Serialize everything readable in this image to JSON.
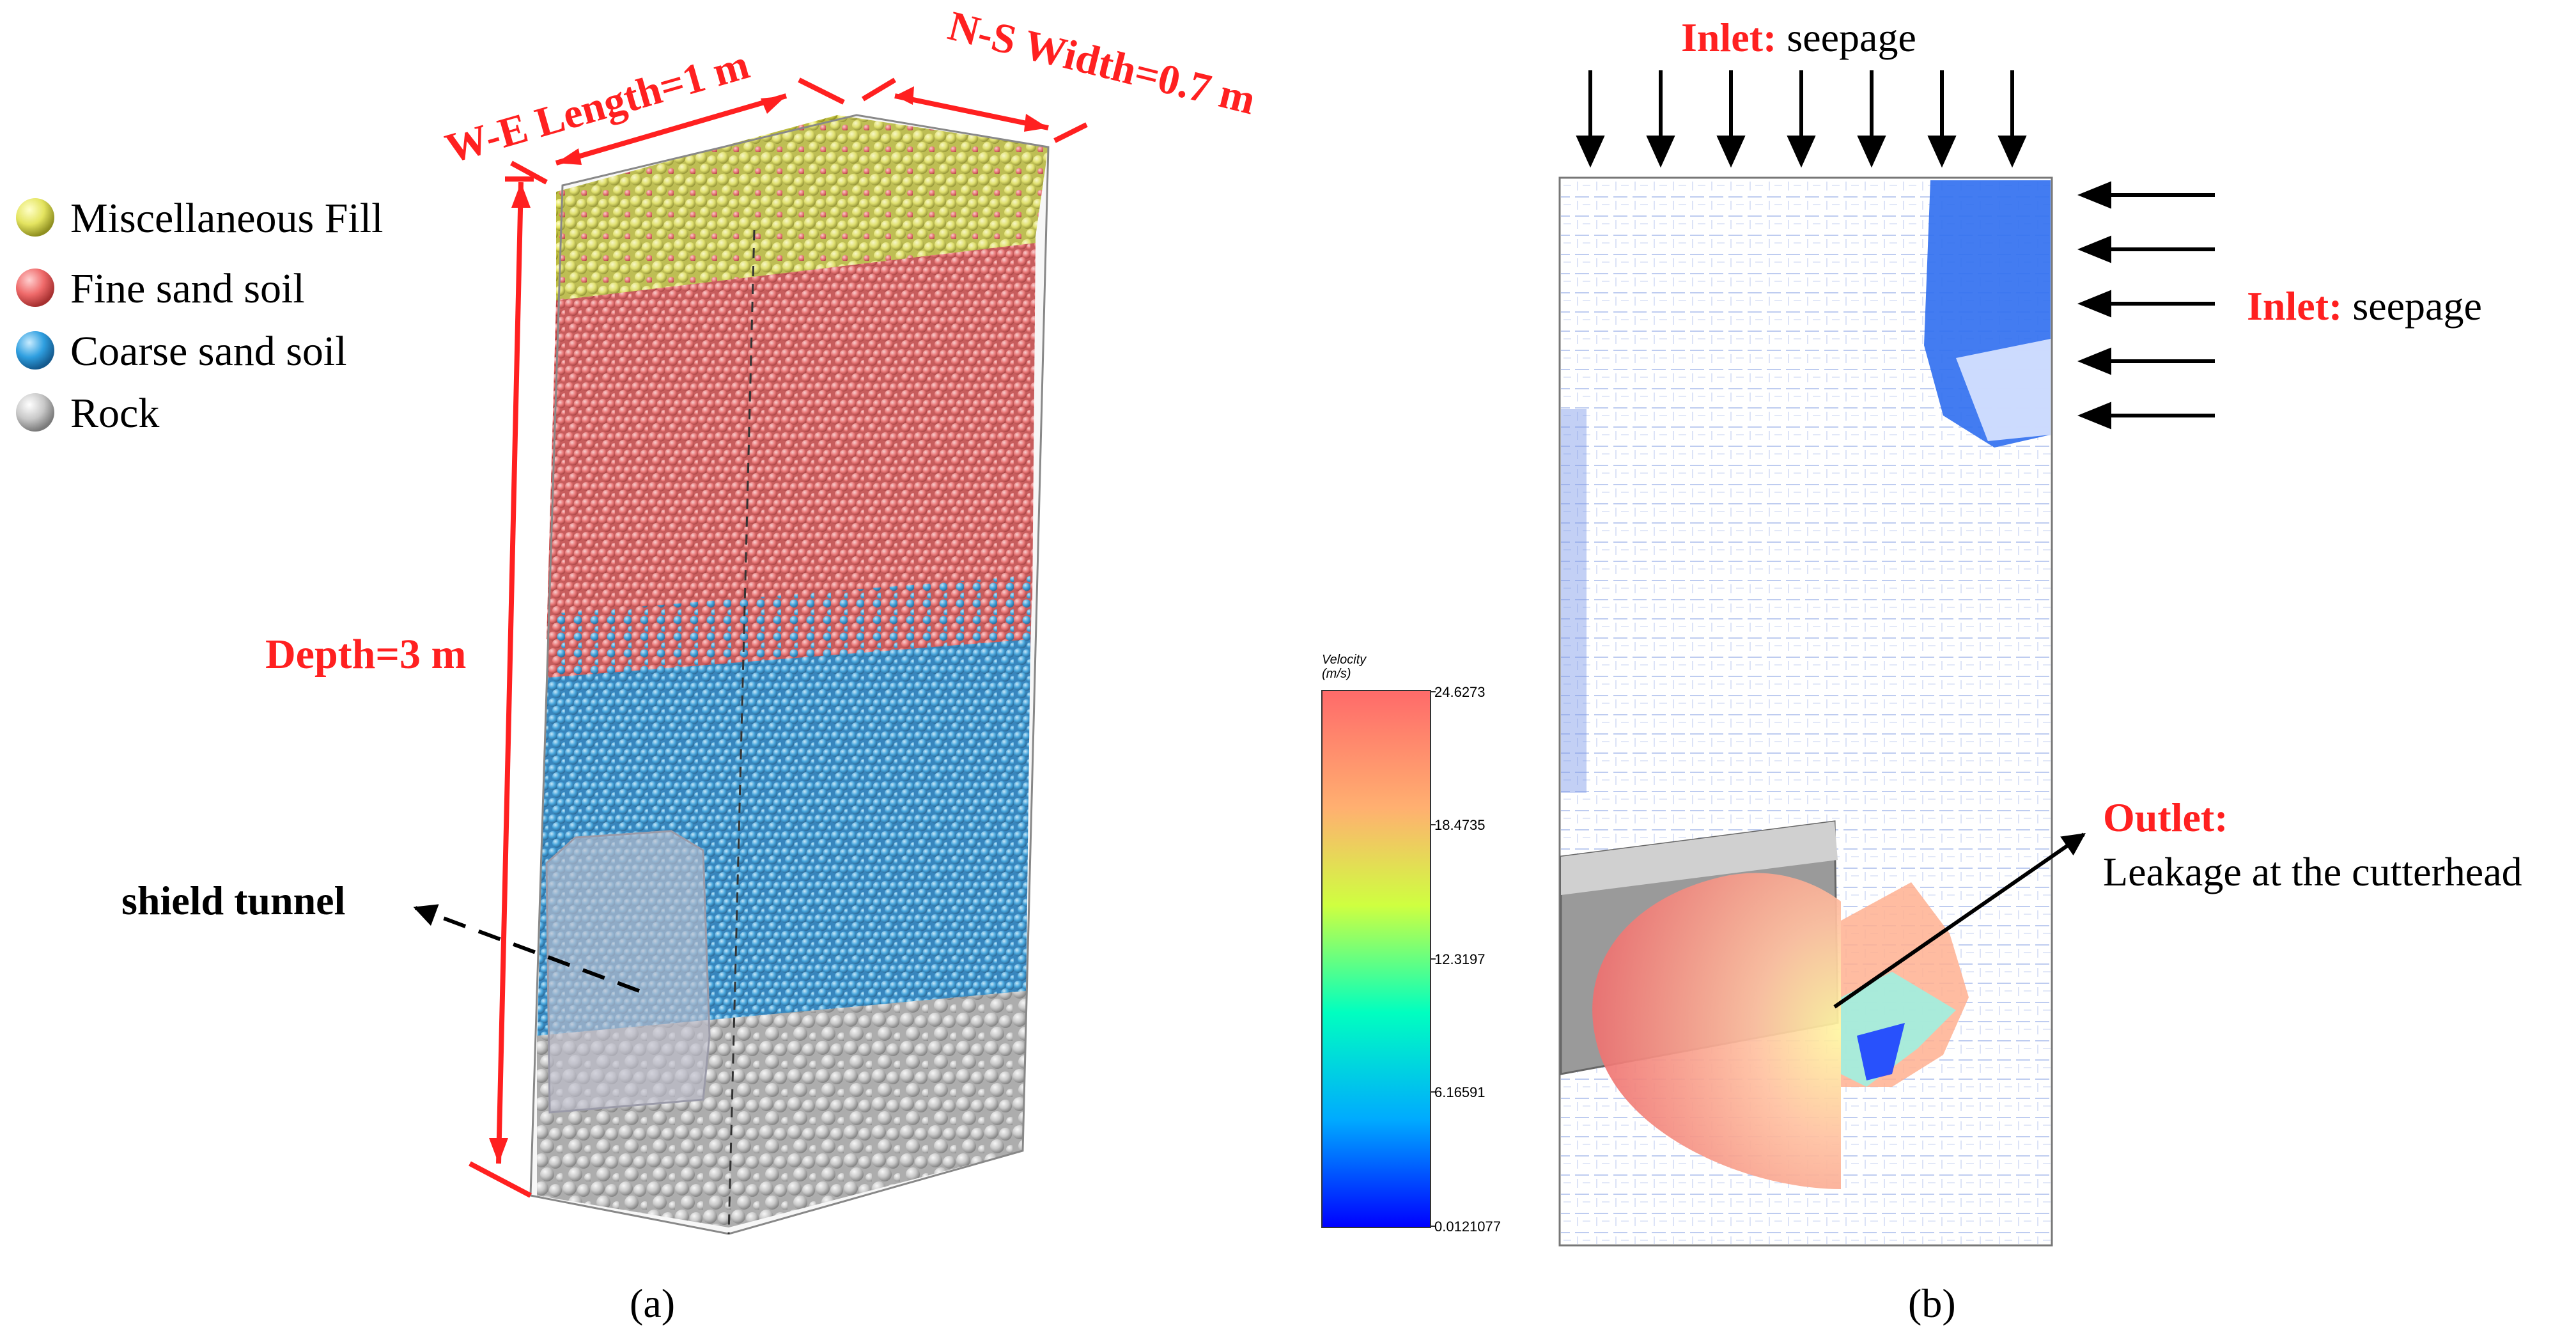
{
  "panel_a": {
    "legend": [
      {
        "label": "Miscellaneous Fill",
        "color": "#e6e66a"
      },
      {
        "label": "Fine sand soil",
        "color": "#f07070"
      },
      {
        "label": "Coarse sand soil",
        "color": "#3aa6e6"
      },
      {
        "label": "Rock",
        "color": "#cfcfcf"
      }
    ],
    "dimension_we": "W-E Length=1 m",
    "dimension_ns": "N-S Width=0.7 m",
    "dimension_depth": "Depth=3 m",
    "tunnel_label": "shield tunnel",
    "caption": "(a)"
  },
  "colorbar": {
    "title_line1": "Velocity",
    "title_line2": "(m/s)",
    "ticks": [
      "24.6273",
      "18.4735",
      "12.3197",
      "6.16591",
      "0.0121077"
    ],
    "colors": [
      "#0000ff",
      "#00c8ff",
      "#00ffb0",
      "#d8ff40",
      "#ff8a60"
    ]
  },
  "panel_b": {
    "inlet_top_prefix": "Inlet:",
    "inlet_top_text": " seepage",
    "inlet_right_prefix": "Inlet:",
    "inlet_right_text": " seepage",
    "outlet_label": "Outlet:",
    "outlet_text": "Leakage at the cutterhead",
    "caption": "(b)"
  },
  "accent_color": "#ff2020"
}
